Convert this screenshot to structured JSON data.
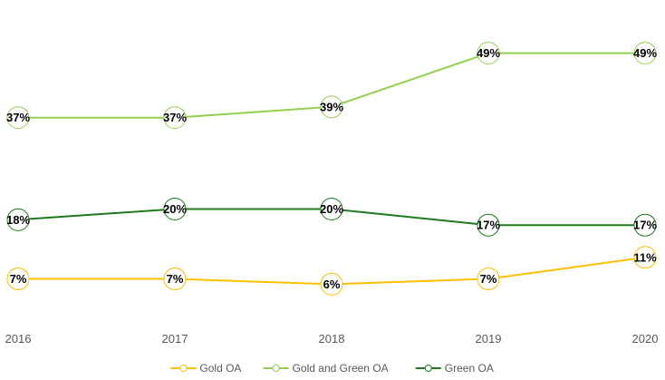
{
  "chart_data": {
    "type": "line",
    "title": "",
    "xlabel": "",
    "ylabel": "",
    "categories": [
      "2016",
      "2017",
      "2018",
      "2019",
      "2020"
    ],
    "ylim": [
      0,
      55
    ],
    "grid": false,
    "legend_position": "bottom",
    "series": [
      {
        "name": "Gold OA",
        "color": "#ffc000",
        "values": [
          7,
          7,
          6,
          7,
          11
        ],
        "labels": [
          "7%",
          "7%",
          "6%",
          "7%",
          "11%"
        ]
      },
      {
        "name": "Gold and Green OA",
        "color": "#92d050",
        "values": [
          37,
          37,
          39,
          49,
          49
        ],
        "labels": [
          "37%",
          "37%",
          "39%",
          "49%",
          "49%"
        ]
      },
      {
        "name": "Green OA",
        "color": "#1e7b1e",
        "values": [
          18,
          20,
          20,
          17,
          17
        ],
        "labels": [
          "18%",
          "20%",
          "20%",
          "17%",
          "17%"
        ]
      }
    ]
  }
}
